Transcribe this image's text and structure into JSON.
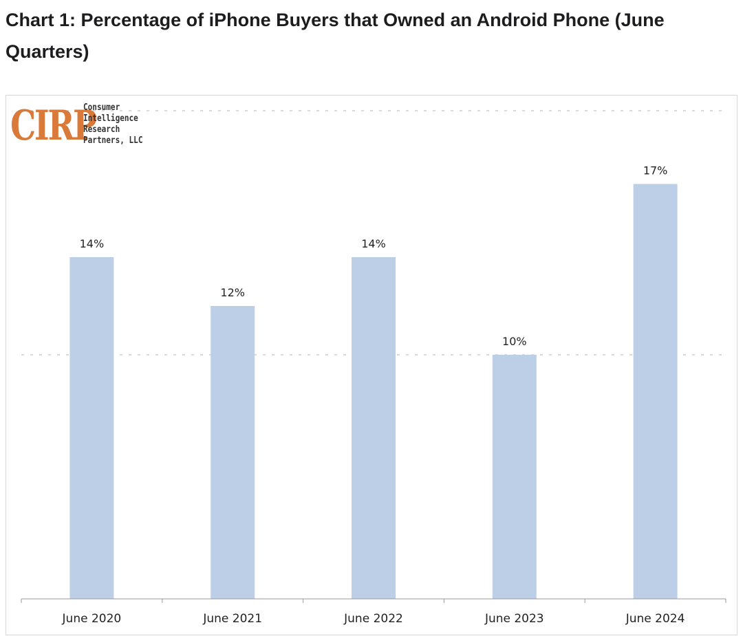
{
  "page": {
    "title": "Chart 1: Percentage of iPhone Buyers that Owned an Android Phone (June Quarters)"
  },
  "logo": {
    "mark": "CIRP",
    "lines": [
      "Consumer",
      "Intelligence",
      "Research",
      "Partners, LLC"
    ],
    "color": "#d97a3a"
  },
  "chart_data": {
    "type": "bar",
    "categories": [
      "June 2020",
      "June 2021",
      "June 2022",
      "June 2023",
      "June 2024"
    ],
    "values": [
      14,
      12,
      14,
      10,
      17
    ],
    "data_labels": [
      "14%",
      "12%",
      "14%",
      "10%",
      "17%"
    ],
    "title": "",
    "xlabel": "",
    "ylabel": "",
    "unit": "%",
    "ylim": [
      0,
      20
    ],
    "gridlines": [
      10,
      20
    ],
    "grid": true,
    "bar_color": "#bccfe7",
    "legend": "none"
  }
}
